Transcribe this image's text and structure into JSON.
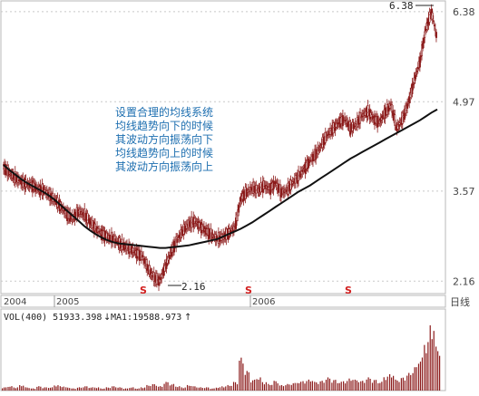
{
  "chart_data": {
    "type": "candlestick",
    "annotation": {
      "lines": [
        "设置合理的均线系统",
        "均线趋势向下的时候",
        "其波动方向振荡向下",
        "均线趋势向上的时候",
        "其波动方向振荡向上"
      ],
      "color": "#1e6fb0"
    },
    "price_axis": {
      "ticks": [
        "6.38",
        "4.97",
        "3.57",
        "2.16"
      ],
      "values": [
        6.38,
        4.97,
        3.57,
        2.16
      ],
      "ylim": [
        2.05,
        6.45
      ]
    },
    "time_axis": {
      "labels": [
        "2004",
        "2005",
        "2006"
      ],
      "period_label": "日线"
    },
    "high_label": "6.38",
    "low_label": "2.16",
    "signal_marker": "S",
    "price_series": [
      3.95,
      3.85,
      3.78,
      3.72,
      3.68,
      3.66,
      3.6,
      3.58,
      3.5,
      3.42,
      3.32,
      3.2,
      3.15,
      3.25,
      3.2,
      3.08,
      2.98,
      2.9,
      2.85,
      2.82,
      2.75,
      2.7,
      2.66,
      2.6,
      2.55,
      2.35,
      2.22,
      2.16,
      2.4,
      2.62,
      2.8,
      2.95,
      3.05,
      3.1,
      3.02,
      2.95,
      2.88,
      2.82,
      2.85,
      2.92,
      3.0,
      3.45,
      3.55,
      3.62,
      3.58,
      3.66,
      3.6,
      3.7,
      3.55,
      3.58,
      3.7,
      3.8,
      3.92,
      4.05,
      4.15,
      4.3,
      4.45,
      4.55,
      4.65,
      4.7,
      4.55,
      4.62,
      4.75,
      4.82,
      4.7,
      4.65,
      4.8,
      4.92,
      4.55,
      4.7,
      4.95,
      5.3,
      5.6,
      6.1,
      6.38,
      5.95
    ],
    "moving_average": [
      3.98,
      3.9,
      3.83,
      3.76,
      3.7,
      3.65,
      3.6,
      3.55,
      3.49,
      3.42,
      3.34,
      3.26,
      3.18,
      3.1,
      3.02,
      2.95,
      2.89,
      2.84,
      2.8,
      2.77,
      2.75,
      2.74,
      2.73,
      2.72,
      2.71,
      2.7,
      2.69,
      2.68,
      2.68,
      2.69,
      2.7,
      2.71,
      2.72,
      2.74,
      2.76,
      2.78,
      2.8,
      2.82,
      2.86,
      2.9,
      2.94,
      2.98,
      3.03,
      3.08,
      3.14,
      3.2,
      3.26,
      3.32,
      3.38,
      3.44,
      3.5,
      3.56,
      3.61,
      3.66,
      3.72,
      3.78,
      3.84,
      3.9,
      3.96,
      4.02,
      4.08,
      4.13,
      4.18,
      4.23,
      4.28,
      4.33,
      4.38,
      4.43,
      4.48,
      4.53,
      4.58,
      4.63,
      4.68,
      4.74,
      4.8,
      4.85
    ],
    "volume_panel": {
      "label": "VOL(400) 51933.398",
      "ma_label": "MA1:19588.973",
      "volumes": [
        3,
        4,
        3,
        5,
        3,
        2,
        4,
        3,
        3,
        5,
        4,
        3,
        2,
        3,
        4,
        3,
        3,
        2,
        3,
        4,
        3,
        2,
        3,
        2,
        3,
        5,
        6,
        4,
        8,
        6,
        4,
        3,
        5,
        4,
        3,
        3,
        2,
        3,
        4,
        5,
        8,
        30,
        18,
        10,
        12,
        8,
        6,
        9,
        5,
        6,
        7,
        8,
        9,
        10,
        8,
        9,
        12,
        10,
        8,
        9,
        11,
        10,
        9,
        12,
        10,
        8,
        13,
        15,
        10,
        12,
        16,
        22,
        30,
        45,
        60,
        40
      ]
    }
  }
}
